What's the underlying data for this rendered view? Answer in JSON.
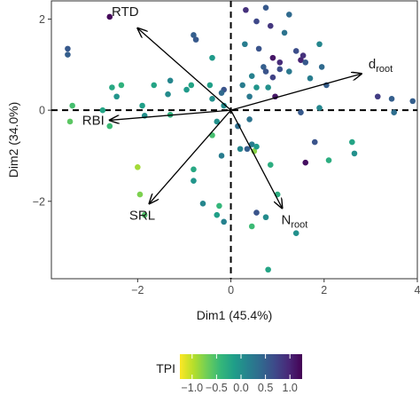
{
  "chart_data": {
    "type": "scatter",
    "subtype": "pca-biplot",
    "xlabel": "Dim1 (45.4%)",
    "ylabel": "Dim2 (34.0%)",
    "xlim": [
      -3.85,
      4.0
    ],
    "ylim": [
      -3.7,
      2.4
    ],
    "x_ticks": [
      -2,
      0,
      2,
      4
    ],
    "x_tick_labels": [
      "−2",
      "0",
      "2",
      "4"
    ],
    "y_ticks": [
      -2,
      0,
      2
    ],
    "y_tick_labels": [
      "−2",
      "0",
      "2"
    ],
    "grid": false,
    "reference_lines": {
      "x": 0,
      "y": 0,
      "style": "dashed"
    },
    "vectors": [
      {
        "name": "RTD",
        "label_main": "RTD",
        "label_sub": "",
        "x": -2.0,
        "y": 1.8
      },
      {
        "name": "d_root",
        "label_main": "d",
        "label_sub": "root",
        "x": 2.8,
        "y": 0.8
      },
      {
        "name": "RBI",
        "label_main": "RBI",
        "label_sub": "",
        "x": -2.6,
        "y": -0.22
      },
      {
        "name": "SRL",
        "label_main": "SRL",
        "label_sub": "",
        "x": -1.75,
        "y": -2.05
      },
      {
        "name": "N_root",
        "label_main": "N",
        "label_sub": "root",
        "x": 1.1,
        "y": -2.15
      }
    ],
    "color_scale": {
      "title": "TPI",
      "range": [
        -1.25,
        1.25
      ],
      "ticks": [
        -1.0,
        -0.5,
        0.0,
        0.5,
        1.0
      ],
      "tick_labels": [
        "−1.0",
        "−0.5",
        "0.0",
        "0.5",
        "1.0"
      ],
      "stops": [
        "#fde725",
        "#b5de2b",
        "#6ece58",
        "#35b779",
        "#1f9e89",
        "#26828e",
        "#31688e",
        "#3e4989",
        "#482878",
        "#440154"
      ],
      "legend_position": "bottom"
    },
    "points": [
      {
        "x": -3.5,
        "y": 1.35,
        "tpi": 0.55
      },
      {
        "x": -3.5,
        "y": 1.22,
        "tpi": 0.5
      },
      {
        "x": -2.6,
        "y": 2.05,
        "tpi": 1.2
      },
      {
        "x": 0.32,
        "y": 2.2,
        "tpi": 0.9
      },
      {
        "x": 0.75,
        "y": 2.25,
        "tpi": 0.55
      },
      {
        "x": 1.25,
        "y": 2.1,
        "tpi": 0.4
      },
      {
        "x": -0.8,
        "y": 1.65,
        "tpi": 0.5
      },
      {
        "x": -0.75,
        "y": 1.55,
        "tpi": 0.55
      },
      {
        "x": 0.55,
        "y": 1.95,
        "tpi": 0.7
      },
      {
        "x": 0.85,
        "y": 1.85,
        "tpi": 0.85
      },
      {
        "x": 1.15,
        "y": 1.7,
        "tpi": 0.3
      },
      {
        "x": 0.3,
        "y": 1.45,
        "tpi": 0.2
      },
      {
        "x": 0.6,
        "y": 1.35,
        "tpi": 0.6
      },
      {
        "x": 1.4,
        "y": 1.3,
        "tpi": 0.65
      },
      {
        "x": 1.9,
        "y": 1.45,
        "tpi": 0.1
      },
      {
        "x": -0.4,
        "y": 1.15,
        "tpi": -0.1
      },
      {
        "x": 0.9,
        "y": 1.15,
        "tpi": 1.1
      },
      {
        "x": 1.05,
        "y": 1.05,
        "tpi": 0.95
      },
      {
        "x": 1.5,
        "y": 1.1,
        "tpi": 1.0
      },
      {
        "x": 1.6,
        "y": 1.05,
        "tpi": 0.55
      },
      {
        "x": 1.55,
        "y": 1.2,
        "tpi": 0.9
      },
      {
        "x": 0.7,
        "y": 0.95,
        "tpi": 0.5
      },
      {
        "x": 0.75,
        "y": 0.85,
        "tpi": 0.6
      },
      {
        "x": 0.9,
        "y": 0.72,
        "tpi": 0.75
      },
      {
        "x": 1.05,
        "y": 0.9,
        "tpi": 0.65
      },
      {
        "x": 1.25,
        "y": 0.85,
        "tpi": 0.25
      },
      {
        "x": 1.95,
        "y": 0.95,
        "tpi": 0.4
      },
      {
        "x": 2.05,
        "y": 0.55,
        "tpi": 0.5
      },
      {
        "x": 1.7,
        "y": 0.7,
        "tpi": 0.2
      },
      {
        "x": 0.45,
        "y": 0.75,
        "tpi": 0.15
      },
      {
        "x": 0.25,
        "y": 0.55,
        "tpi": 0.2
      },
      {
        "x": 0.55,
        "y": 0.5,
        "tpi": -0.05
      },
      {
        "x": 0.8,
        "y": 0.5,
        "tpi": 0.0
      },
      {
        "x": 0.4,
        "y": 0.3,
        "tpi": 0.25
      },
      {
        "x": 0.95,
        "y": 0.3,
        "tpi": 1.1
      },
      {
        "x": -0.15,
        "y": 0.45,
        "tpi": 0.6
      },
      {
        "x": -0.2,
        "y": 0.38,
        "tpi": 0.4
      },
      {
        "x": -0.45,
        "y": 0.55,
        "tpi": -0.15
      },
      {
        "x": -0.85,
        "y": 0.55,
        "tpi": -0.2
      },
      {
        "x": -0.95,
        "y": 0.45,
        "tpi": -0.1
      },
      {
        "x": -0.4,
        "y": 0.25,
        "tpi": 0.0
      },
      {
        "x": -0.15,
        "y": 0.1,
        "tpi": 0.05
      },
      {
        "x": -1.3,
        "y": 0.65,
        "tpi": 0.1
      },
      {
        "x": -1.65,
        "y": 0.55,
        "tpi": -0.2
      },
      {
        "x": -1.35,
        "y": 0.35,
        "tpi": 0.05
      },
      {
        "x": -2.55,
        "y": 0.5,
        "tpi": -0.25
      },
      {
        "x": -2.35,
        "y": 0.55,
        "tpi": -0.35
      },
      {
        "x": -2.45,
        "y": 0.3,
        "tpi": -0.05
      },
      {
        "x": -1.9,
        "y": 0.1,
        "tpi": -0.15
      },
      {
        "x": -1.85,
        "y": -0.12,
        "tpi": 0.0
      },
      {
        "x": -2.75,
        "y": 0.0,
        "tpi": -0.2
      },
      {
        "x": -2.6,
        "y": -0.35,
        "tpi": -0.45
      },
      {
        "x": -3.4,
        "y": 0.1,
        "tpi": -0.5
      },
      {
        "x": -3.45,
        "y": -0.25,
        "tpi": -0.6
      },
      {
        "x": -1.3,
        "y": -0.1,
        "tpi": -0.35
      },
      {
        "x": -0.3,
        "y": -0.25,
        "tpi": 0.0
      },
      {
        "x": -0.4,
        "y": -0.55,
        "tpi": -0.5
      },
      {
        "x": 0.4,
        "y": -0.2,
        "tpi": 0.3
      },
      {
        "x": 0.35,
        "y": -0.85,
        "tpi": 0.5
      },
      {
        "x": 0.45,
        "y": -0.75,
        "tpi": 0.2
      },
      {
        "x": 0.5,
        "y": -0.9,
        "tpi": -0.8
      },
      {
        "x": 0.55,
        "y": -0.8,
        "tpi": -0.1
      },
      {
        "x": 0.2,
        "y": -0.85,
        "tpi": 0.1
      },
      {
        "x": 0.15,
        "y": -0.35,
        "tpi": 0.35
      },
      {
        "x": 1.5,
        "y": -0.05,
        "tpi": 0.55
      },
      {
        "x": 1.9,
        "y": 0.05,
        "tpi": 0.1
      },
      {
        "x": 1.8,
        "y": -0.7,
        "tpi": 0.6
      },
      {
        "x": 1.6,
        "y": -1.15,
        "tpi": 1.15
      },
      {
        "x": 2.6,
        "y": -0.7,
        "tpi": -0.2
      },
      {
        "x": 2.65,
        "y": -0.95,
        "tpi": 0.0
      },
      {
        "x": 3.45,
        "y": 0.25,
        "tpi": 0.5
      },
      {
        "x": 3.5,
        "y": -0.05,
        "tpi": 0.35
      },
      {
        "x": 3.15,
        "y": 0.3,
        "tpi": 0.8
      },
      {
        "x": 3.9,
        "y": 0.2,
        "tpi": 0.5
      },
      {
        "x": 2.1,
        "y": -1.1,
        "tpi": -0.3
      },
      {
        "x": -0.2,
        "y": -1.0,
        "tpi": 0.2
      },
      {
        "x": 0.85,
        "y": -1.2,
        "tpi": -0.3
      },
      {
        "x": -0.8,
        "y": -1.3,
        "tpi": -0.25
      },
      {
        "x": -0.8,
        "y": -1.55,
        "tpi": -0.05
      },
      {
        "x": -2.0,
        "y": -1.25,
        "tpi": -0.9
      },
      {
        "x": -1.95,
        "y": -1.85,
        "tpi": -0.75
      },
      {
        "x": 1.0,
        "y": -1.85,
        "tpi": -0.3
      },
      {
        "x": -0.6,
        "y": -2.05,
        "tpi": 0.1
      },
      {
        "x": -1.85,
        "y": -2.3,
        "tpi": -0.55
      },
      {
        "x": -0.25,
        "y": -2.1,
        "tpi": -0.4
      },
      {
        "x": -0.3,
        "y": -2.3,
        "tpi": -0.15
      },
      {
        "x": -0.15,
        "y": -2.45,
        "tpi": 0.15
      },
      {
        "x": 0.55,
        "y": -2.25,
        "tpi": 0.6
      },
      {
        "x": 0.45,
        "y": -2.55,
        "tpi": -0.45
      },
      {
        "x": 0.75,
        "y": -2.35,
        "tpi": 0.05
      },
      {
        "x": 0.8,
        "y": -3.5,
        "tpi": -0.2
      },
      {
        "x": 1.4,
        "y": -2.7,
        "tpi": 0.0
      }
    ]
  }
}
